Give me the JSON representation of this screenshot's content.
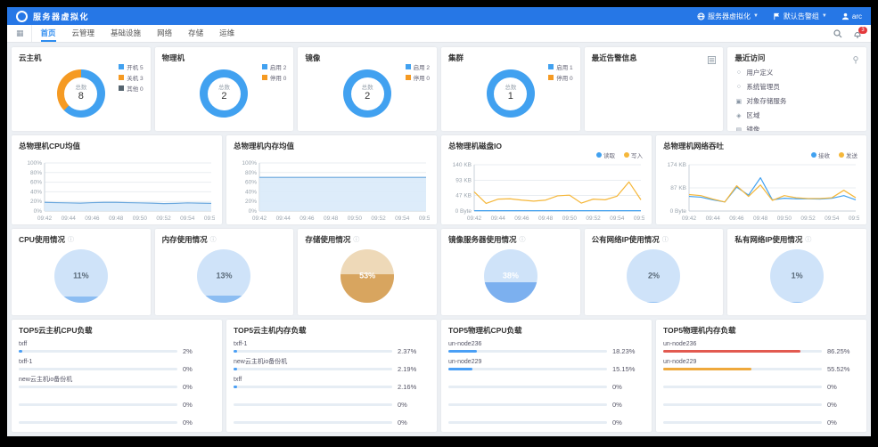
{
  "header": {
    "title": "服务器虚拟化",
    "menus": [
      {
        "icon": "globe-icon",
        "label": "服务器虚拟化"
      },
      {
        "icon": "flag-icon",
        "label": "默认告警组"
      },
      {
        "icon": "user-icon",
        "label": "arc"
      }
    ]
  },
  "nav": {
    "tabs": [
      {
        "label": "首页",
        "active": true
      },
      {
        "label": "云管理",
        "active": false
      },
      {
        "label": "基础设施",
        "active": false
      },
      {
        "label": "网络",
        "active": false
      },
      {
        "label": "存储",
        "active": false
      },
      {
        "label": "运维",
        "active": false
      }
    ],
    "notification_count": "3"
  },
  "overview_cards": [
    {
      "title": "云主机",
      "total_label": "总数",
      "total": "8",
      "segments": [
        {
          "label": "开机",
          "value": 5,
          "color": "#41a1f0"
        },
        {
          "label": "关机",
          "value": 3,
          "color": "#f59a23"
        },
        {
          "label": "其他",
          "value": 0,
          "color": "#55646f"
        }
      ]
    },
    {
      "title": "物理机",
      "total_label": "总数",
      "total": "2",
      "segments": [
        {
          "label": "启用",
          "value": 2,
          "color": "#41a1f0"
        },
        {
          "label": "停用",
          "value": 0,
          "color": "#f59a23"
        }
      ]
    },
    {
      "title": "镜像",
      "total_label": "总数",
      "total": "2",
      "segments": [
        {
          "label": "启用",
          "value": 2,
          "color": "#41a1f0"
        },
        {
          "label": "停用",
          "value": 0,
          "color": "#f59a23"
        }
      ]
    },
    {
      "title": "集群",
      "total_label": "总数",
      "total": "1",
      "segments": [
        {
          "label": "启用",
          "value": 1,
          "color": "#41a1f0"
        },
        {
          "label": "停用",
          "value": 0,
          "color": "#f59a23"
        }
      ]
    }
  ],
  "recent_alerts": {
    "title": "最近告警信息"
  },
  "recent_visits": {
    "title": "最近访问",
    "items": [
      {
        "icon": "circle-icon",
        "label": "用户定义"
      },
      {
        "icon": "circle-icon",
        "label": "系统管理员"
      },
      {
        "icon": "camera-icon",
        "label": "对象存储服务"
      },
      {
        "icon": "nodes-icon",
        "label": "区域"
      },
      {
        "icon": "copy-icon",
        "label": "镜像"
      },
      {
        "icon": "clock-icon",
        "label": "定时巡检策略管理"
      }
    ]
  },
  "chart_data": [
    {
      "type": "area",
      "title": "总物理机CPU均值",
      "y_max": 100,
      "legend": false,
      "x_labels": [
        "09:42",
        "09:44",
        "09:46",
        "09:48",
        "09:50",
        "09:52",
        "09:54",
        "09:56"
      ],
      "y_ticks": [
        {
          "v": 0,
          "label": "0%"
        },
        {
          "v": 20,
          "label": "20%"
        },
        {
          "v": 40,
          "label": "40%"
        },
        {
          "v": 60,
          "label": "60%"
        },
        {
          "v": 80,
          "label": "80%"
        },
        {
          "v": 100,
          "label": "100%"
        }
      ],
      "series": [
        {
          "name": "CPU均值",
          "color": "#6aa7dd",
          "fill": "#d9eaf9",
          "values": [
            18,
            17.5,
            17,
            16.5,
            17.5,
            18,
            18,
            17.5,
            17,
            16.5,
            15.5,
            16,
            17,
            16.5,
            16
          ]
        }
      ]
    },
    {
      "type": "area",
      "title": "总物理机内存均值",
      "y_max": 100,
      "legend": false,
      "x_labels": [
        "09:42",
        "09:44",
        "09:46",
        "09:48",
        "09:50",
        "09:52",
        "09:54",
        "09:56"
      ],
      "y_ticks": [
        {
          "v": 0,
          "label": "0%"
        },
        {
          "v": 20,
          "label": "20%"
        },
        {
          "v": 40,
          "label": "40%"
        },
        {
          "v": 60,
          "label": "60%"
        },
        {
          "v": 80,
          "label": "80%"
        },
        {
          "v": 100,
          "label": "100%"
        }
      ],
      "series": [
        {
          "name": "内存均值",
          "color": "#6aa7dd",
          "fill": "#d9eaf9",
          "values": [
            70,
            70,
            70,
            70,
            70,
            70,
            70,
            70,
            70,
            70,
            70,
            70,
            70,
            70,
            70
          ]
        }
      ]
    },
    {
      "type": "line",
      "title": "总物理机磁盘IO",
      "y_max": 140,
      "legend": true,
      "x_labels": [
        "09:42",
        "09:44",
        "09:46",
        "09:48",
        "09:50",
        "09:52",
        "09:54",
        "09:56"
      ],
      "y_ticks": [
        {
          "v": 0,
          "label": "0 Byte"
        },
        {
          "v": 47,
          "label": "47 KB"
        },
        {
          "v": 93,
          "label": "93 KB"
        },
        {
          "v": 140,
          "label": "140 KB"
        }
      ],
      "series": [
        {
          "name": "读取",
          "color": "#41a1f0",
          "values": [
            1,
            1,
            1,
            1,
            1,
            1,
            1,
            1,
            1,
            1,
            1,
            1,
            1,
            1,
            1
          ]
        },
        {
          "name": "写入",
          "color": "#f5b73a",
          "values": [
            58,
            23,
            36,
            37,
            33,
            30,
            33,
            46,
            48,
            24,
            36,
            34,
            45,
            88,
            34
          ]
        }
      ]
    },
    {
      "type": "line",
      "title": "总物理机网络吞吐",
      "y_max": 174,
      "legend": true,
      "x_labels": [
        "09:42",
        "09:44",
        "09:46",
        "09:48",
        "09:50",
        "09:52",
        "09:54",
        "09:56"
      ],
      "y_ticks": [
        {
          "v": 0,
          "label": "0 Byte"
        },
        {
          "v": 87,
          "label": "87 KB"
        },
        {
          "v": 174,
          "label": "174 KB"
        }
      ],
      "series": [
        {
          "name": "接收",
          "color": "#41a1f0",
          "values": [
            55,
            52,
            42,
            34,
            90,
            60,
            125,
            42,
            48,
            46,
            46,
            45,
            48,
            58,
            42
          ]
        },
        {
          "name": "发送",
          "color": "#f5b73a",
          "values": [
            62,
            58,
            45,
            34,
            95,
            55,
            98,
            40,
            58,
            50,
            47,
            47,
            50,
            78,
            50
          ]
        }
      ]
    }
  ],
  "gauges": [
    {
      "title": "CPU使用情况",
      "value": 11,
      "value_label": "11%",
      "light": "#cfe3f9",
      "fill": "#8cbdf2",
      "text": "#5b6b7a"
    },
    {
      "title": "内存使用情况",
      "value": 13,
      "value_label": "13%",
      "light": "#cfe3f9",
      "fill": "#8cbdf2",
      "text": "#5b6b7a"
    },
    {
      "title": "存储使用情况",
      "value": 53,
      "value_label": "53%",
      "light": "#eed9b8",
      "fill": "#d8a55f",
      "text": "#ffffff"
    },
    {
      "title": "镜像服务器使用情况",
      "value": 38,
      "value_label": "38%",
      "light": "#cfe3f9",
      "fill": "#7cb0ef",
      "text": "#ffffff"
    },
    {
      "title": "公有网络IP使用情况",
      "value": 2,
      "value_label": "2%",
      "light": "#cfe3f9",
      "fill": "#8cbdf2",
      "text": "#5b6b7a"
    },
    {
      "title": "私有网络IP使用情况",
      "value": 1,
      "value_label": "1%",
      "light": "#cfe3f9",
      "fill": "#8cbdf2",
      "text": "#5b6b7a"
    }
  ],
  "top5": [
    {
      "title": "TOP5云主机CPU负载",
      "items": [
        {
          "label": "txff",
          "value": 2,
          "value_label": "2%",
          "color": "#4a9ff5"
        },
        {
          "label": "txff-1",
          "value": 0,
          "value_label": "0%",
          "color": "#4a9ff5"
        },
        {
          "label": "new云主机io备份机",
          "value": 0,
          "value_label": "0%",
          "color": "#4a9ff5"
        },
        {
          "label": "",
          "value": 0,
          "value_label": "0%",
          "color": "#4a9ff5"
        },
        {
          "label": "",
          "value": 0,
          "value_label": "0%",
          "color": "#4a9ff5"
        }
      ]
    },
    {
      "title": "TOP5云主机内存负载",
      "items": [
        {
          "label": "txff-1",
          "value": 2.37,
          "value_label": "2.37%",
          "color": "#4a9ff5"
        },
        {
          "label": "new云主机io备份机",
          "value": 2.19,
          "value_label": "2.19%",
          "color": "#4a9ff5"
        },
        {
          "label": "txff",
          "value": 2.16,
          "value_label": "2.16%",
          "color": "#4a9ff5"
        },
        {
          "label": "",
          "value": 0,
          "value_label": "0%",
          "color": "#4a9ff5"
        },
        {
          "label": "",
          "value": 0,
          "value_label": "0%",
          "color": "#4a9ff5"
        }
      ]
    },
    {
      "title": "TOP5物理机CPU负载",
      "items": [
        {
          "label": "un-node236",
          "value": 18.23,
          "value_label": "18.23%",
          "color": "#4a9ff5"
        },
        {
          "label": "un-node229",
          "value": 15.15,
          "value_label": "15.15%",
          "color": "#4a9ff5"
        },
        {
          "label": "",
          "value": 0,
          "value_label": "0%",
          "color": "#4a9ff5"
        },
        {
          "label": "",
          "value": 0,
          "value_label": "0%",
          "color": "#4a9ff5"
        },
        {
          "label": "",
          "value": 0,
          "value_label": "0%",
          "color": "#4a9ff5"
        }
      ]
    },
    {
      "title": "TOP5物理机内存负载",
      "items": [
        {
          "label": "un-node236",
          "value": 86.25,
          "value_label": "86.25%",
          "color": "#e25a50"
        },
        {
          "label": "un-node229",
          "value": 55.52,
          "value_label": "55.52%",
          "color": "#efa93c"
        },
        {
          "label": "",
          "value": 0,
          "value_label": "0%",
          "color": "#4a9ff5"
        },
        {
          "label": "",
          "value": 0,
          "value_label": "0%",
          "color": "#4a9ff5"
        },
        {
          "label": "",
          "value": 0,
          "value_label": "0%",
          "color": "#4a9ff5"
        }
      ]
    }
  ]
}
